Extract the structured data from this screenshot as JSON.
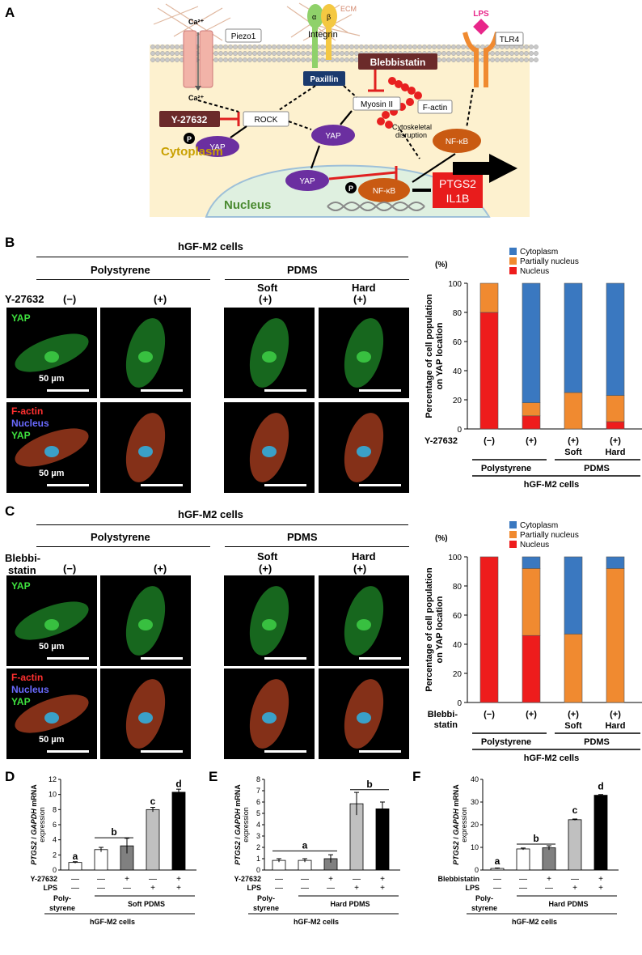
{
  "panel_labels": {
    "A": "A",
    "B": "B",
    "C": "C",
    "D": "D",
    "E": "E",
    "F": "F"
  },
  "panel_a": {
    "piezo1": "Piezo1",
    "ca_top": "Ca²⁺",
    "ca_in": "Ca²⁺",
    "ecm": "ECM",
    "alpha": "α",
    "beta": "β",
    "integrin": "Integrin",
    "lps": "LPS",
    "tlr4": "TLR4",
    "blebbistatin": "Blebbistatin",
    "paxillin": "Paxillin",
    "myosin": "Myosin II",
    "factin": "F-actin",
    "y27632": "Y-27632",
    "rock": "ROCK",
    "yap1": "YAP",
    "yap2": "YAP",
    "yap3": "YAP",
    "p": "P",
    "cyto_disrupt1": "Cytoskeletal",
    "cyto_disrupt2": "disruption",
    "nfkb1": "NF-κB",
    "nfkb2": "NF-κB",
    "ptgs2": "PTGS2",
    "il1b": "IL1B",
    "cytoplasm": "Cytoplasm",
    "nucleus": "Nucleus"
  },
  "panel_b": {
    "title": "hGF-M2 cells",
    "polystyrene": "Polystyrene",
    "pdms": "PDMS",
    "soft": "Soft",
    "hard": "Hard",
    "treatment": "Y-27632",
    "minus": "(−)",
    "plus": "(+)",
    "yap": "YAP",
    "factin": "F-actin",
    "nucleus": "Nucleus",
    "scale": "50 µm"
  },
  "panel_c": {
    "title": "hGF-M2 cells",
    "polystyrene": "Polystyrene",
    "pdms": "PDMS",
    "soft": "Soft",
    "hard": "Hard",
    "treatment1": "Blebbi-",
    "treatment2": "statin",
    "minus": "(−)",
    "plus": "(+)",
    "yap": "YAP",
    "factin": "F-actin",
    "nucleus": "Nucleus",
    "scale": "50 µm"
  },
  "chart_data": [
    {
      "type": "bar",
      "stacked": true,
      "ylabel": "Percentage of cell population on YAP location",
      "yunit": "(%)",
      "ylim": [
        0,
        100
      ],
      "yticks": [
        0,
        20,
        40,
        60,
        80,
        100
      ],
      "treatment": "Y-27632",
      "categories": [
        "(−)",
        "(+)",
        "(+)",
        "(+)"
      ],
      "subcategories": [
        "",
        "",
        "Soft",
        "Hard"
      ],
      "groups": [
        "Polystyrene",
        "PDMS"
      ],
      "footer": "hGF-M2 cells",
      "legend": [
        "Cytoplasm",
        "Partially nucleus",
        "Nucleus"
      ],
      "colors": {
        "Cytoplasm": "#3a78c0",
        "Partially nucleus": "#f08a30",
        "Nucleus": "#ee1c1c"
      },
      "series": [
        {
          "name": "Nucleus",
          "values": [
            80,
            9,
            0,
            5
          ]
        },
        {
          "name": "Partially nucleus",
          "values": [
            20,
            9,
            25,
            18
          ]
        },
        {
          "name": "Cytoplasm",
          "values": [
            0,
            82,
            75,
            77
          ]
        }
      ]
    },
    {
      "type": "bar",
      "stacked": true,
      "ylabel": "Percentage of cell population on YAP location",
      "yunit": "(%)",
      "ylim": [
        0,
        100
      ],
      "yticks": [
        0,
        20,
        40,
        60,
        80,
        100
      ],
      "treatment1": "Blebbi-",
      "treatment2": "statin",
      "categories": [
        "(−)",
        "(+)",
        "(+)",
        "(+)"
      ],
      "subcategories": [
        "",
        "",
        "Soft",
        "Hard"
      ],
      "groups": [
        "Polystyrene",
        "PDMS"
      ],
      "footer": "hGF-M2 cells",
      "legend": [
        "Cytoplasm",
        "Partially nucleus",
        "Nucleus"
      ],
      "colors": {
        "Cytoplasm": "#3a78c0",
        "Partially nucleus": "#f08a30",
        "Nucleus": "#ee1c1c"
      },
      "series": [
        {
          "name": "Nucleus",
          "values": [
            100,
            46,
            0,
            0
          ]
        },
        {
          "name": "Partially nucleus",
          "values": [
            0,
            46,
            47,
            92
          ]
        },
        {
          "name": "Cytoplasm",
          "values": [
            0,
            8,
            53,
            8
          ]
        }
      ]
    },
    {
      "type": "bar",
      "ylim": [
        0,
        12
      ],
      "yticks": [
        0,
        2,
        4,
        6,
        8,
        10,
        12
      ],
      "ylabel_gene": "PTGS2",
      "ylabel_sep": " / ",
      "ylabel_gene2": "GAPDH",
      "ylabel_rest": " mRNA",
      "ylabel2": "expression",
      "values": [
        1.0,
        2.7,
        3.2,
        8.0,
        10.3
      ],
      "errors": [
        0.1,
        0.3,
        1.0,
        0.3,
        0.4
      ],
      "fills": [
        "#ffffff",
        "#ffffff",
        "#808080",
        "#c0c0c0",
        "#000000"
      ],
      "letters": [
        "a",
        "b",
        "c",
        "d"
      ],
      "row1_label": "Y-27632",
      "row1": [
        "—",
        "—",
        "+",
        "—",
        "+"
      ],
      "row2_label": "LPS",
      "row2": [
        "—",
        "—",
        "—",
        "+",
        "+"
      ],
      "group1": "Poly-",
      "group1b": "styrene",
      "group2": "Soft PDMS",
      "footer": "hGF-M2 cells"
    },
    {
      "type": "bar",
      "ylim": [
        0,
        8
      ],
      "yticks": [
        0,
        1,
        2,
        3,
        4,
        5,
        6,
        7,
        8
      ],
      "ylabel_gene": "PTGS2",
      "ylabel_sep": " / ",
      "ylabel_gene2": "GAPDH",
      "ylabel_rest": " mRNA",
      "ylabel2": "expression",
      "values": [
        0.85,
        0.85,
        1.0,
        5.85,
        5.4
      ],
      "errors": [
        0.15,
        0.15,
        0.35,
        1.0,
        0.6
      ],
      "fills": [
        "#ffffff",
        "#ffffff",
        "#808080",
        "#c0c0c0",
        "#000000"
      ],
      "letters": [
        "a",
        "b"
      ],
      "row1_label": "Y-27632",
      "row1": [
        "—",
        "—",
        "+",
        "—",
        "+"
      ],
      "row2_label": "LPS",
      "row2": [
        "—",
        "—",
        "—",
        "+",
        "+"
      ],
      "group1": "Poly-",
      "group1b": "styrene",
      "group2": "Hard PDMS",
      "footer": "hGF-M2 cells"
    },
    {
      "type": "bar",
      "ylim": [
        0,
        40
      ],
      "yticks": [
        0,
        10,
        20,
        30,
        40
      ],
      "ylabel_gene": "PTGS2",
      "ylabel_sep": " / ",
      "ylabel_gene2": "GAPDH",
      "ylabel_rest": " mRNA",
      "ylabel2": "expression",
      "values": [
        0.7,
        9.3,
        9.8,
        22.2,
        33.0
      ],
      "errors": [
        0.2,
        0.4,
        0.9,
        0.3,
        0.3
      ],
      "fills": [
        "#ffffff",
        "#ffffff",
        "#808080",
        "#c0c0c0",
        "#000000"
      ],
      "letters": [
        "a",
        "b",
        "c",
        "d"
      ],
      "row1_label": "Blebbistatin",
      "row1": [
        "—",
        "—",
        "+",
        "—",
        "+"
      ],
      "row2_label": "LPS",
      "row2": [
        "—",
        "—",
        "—",
        "+",
        "+"
      ],
      "group1": "Poly-",
      "group1b": "styrene",
      "group2": "Hard PDMS",
      "footer": "hGF-M2 cells"
    }
  ]
}
